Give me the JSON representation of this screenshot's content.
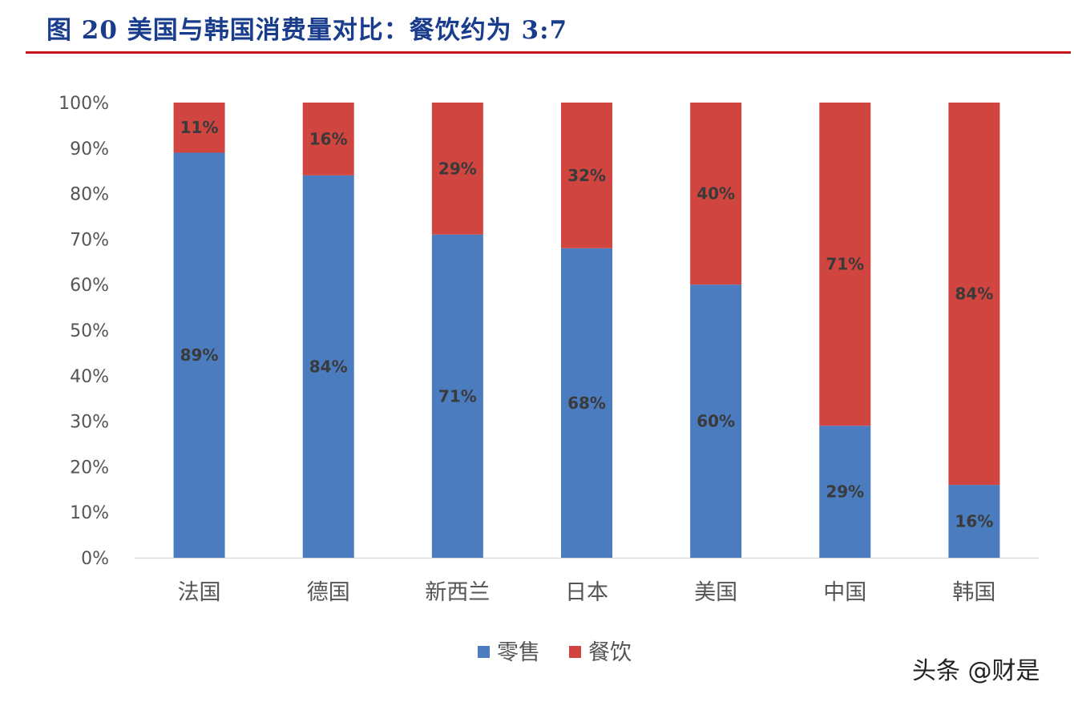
{
  "title": "图 20  美国与韩国消费量对比：餐饮约为 3:7",
  "watermark": "头条 @财是",
  "colors": {
    "title": "#1a3c8c",
    "rule": "#c8161d",
    "retail": "#4a7cbf",
    "catering": "#d0453f",
    "axis_text": "#555555"
  },
  "chart_data": {
    "type": "bar",
    "stacked": true,
    "categories": [
      "法国",
      "德国",
      "新西兰",
      "日本",
      "美国",
      "中国",
      "韩国"
    ],
    "series": [
      {
        "name": "零售",
        "values": [
          89,
          84,
          71,
          68,
          60,
          29,
          16
        ],
        "labels": [
          "89%",
          "84%",
          "71%",
          "68%",
          "60%",
          "29%",
          "16%"
        ],
        "color": "#4a7cbf"
      },
      {
        "name": "餐饮",
        "values": [
          11,
          16,
          29,
          32,
          40,
          71,
          84
        ],
        "labels": [
          "11%",
          "16%",
          "29%",
          "32%",
          "40%",
          "71%",
          "84%"
        ],
        "color": "#d0453f"
      }
    ],
    "yticks": [
      "0%",
      "10%",
      "20%",
      "30%",
      "40%",
      "50%",
      "60%",
      "70%",
      "80%",
      "90%",
      "100%"
    ],
    "ylim": [
      0,
      100
    ],
    "xlabel": "",
    "ylabel": "",
    "legend_position": "bottom-center",
    "grid": false
  }
}
